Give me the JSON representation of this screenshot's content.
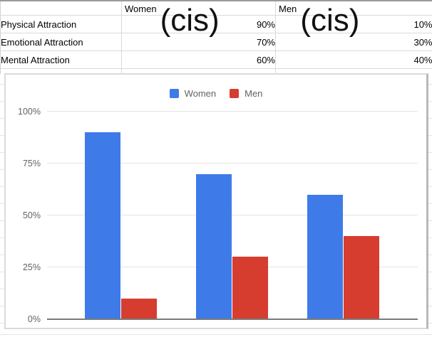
{
  "table": {
    "col_headers": [
      {
        "small": "Women",
        "big": "(cis)"
      },
      {
        "small": "Men",
        "big": "(cis)"
      }
    ],
    "rows": [
      {
        "label": "Physical Attraction",
        "women": "90%",
        "men": "10%"
      },
      {
        "label": "Emotional Attraction",
        "women": "70%",
        "men": "30%"
      },
      {
        "label": "Mental Attraction",
        "women": "60%",
        "men": "40%"
      }
    ]
  },
  "chart_data": {
    "type": "bar",
    "categories": [
      "Physical Attraction",
      "Emotional Attraction",
      "Mental Attraction"
    ],
    "series": [
      {
        "name": "Women",
        "color": "#3E7BE9",
        "values": [
          90,
          70,
          60
        ]
      },
      {
        "name": "Men",
        "color": "#D63D2F",
        "values": [
          10,
          30,
          40
        ]
      }
    ],
    "title": "",
    "xlabel": "",
    "ylabel": "",
    "ylim": [
      0,
      100
    ],
    "yticks": [
      0,
      25,
      50,
      75,
      100
    ],
    "ytick_labels": [
      "0%",
      "25%",
      "50%",
      "75%",
      "100%"
    ],
    "legend": {
      "position": "top",
      "entries": [
        "Women",
        "Men"
      ]
    },
    "grid": true,
    "x_tick_labels_visible": false
  }
}
